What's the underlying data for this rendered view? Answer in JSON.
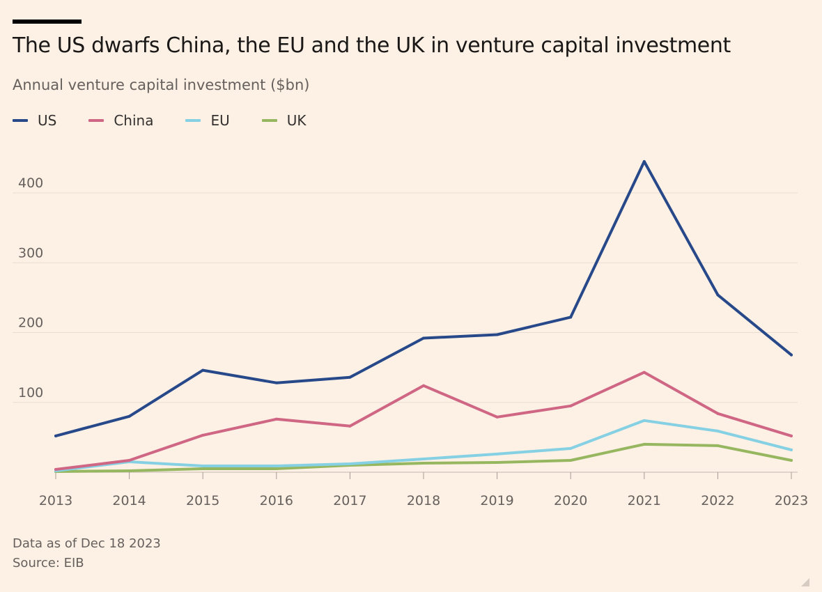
{
  "header": {
    "title": "The US dwarfs China, the EU and the UK in venture capital investment",
    "subtitle": "Annual venture capital investment ($bn)"
  },
  "footer": {
    "note": "Data as of Dec 18 2023",
    "source": "Source: EIB"
  },
  "chart_data": {
    "type": "line",
    "title": "The US dwarfs China, the EU and the UK in venture capital investment",
    "subtitle": "Annual venture capital investment ($bn)",
    "xlabel": "",
    "ylabel": "",
    "x": [
      "2013",
      "2014",
      "2015",
      "2016",
      "2017",
      "2018",
      "2019",
      "2020",
      "2021",
      "2022",
      "2023"
    ],
    "ylim": [
      0,
      440
    ],
    "yticks": [
      100,
      200,
      300,
      400
    ],
    "grid": true,
    "legend_position": "top-left",
    "series": [
      {
        "name": "US",
        "color": "#27498a",
        "values": [
          52,
          80,
          146,
          128,
          136,
          192,
          197,
          222,
          445,
          254,
          168
        ]
      },
      {
        "name": "China",
        "color": "#cf6683",
        "values": [
          4,
          17,
          53,
          76,
          66,
          124,
          79,
          95,
          143,
          84,
          52
        ]
      },
      {
        "name": "EU",
        "color": "#86d0e3",
        "values": [
          2,
          15,
          9,
          9,
          12,
          19,
          26,
          34,
          74,
          59,
          32
        ]
      },
      {
        "name": "UK",
        "color": "#96b760",
        "values": [
          1,
          2,
          5,
          5,
          10,
          13,
          14,
          17,
          40,
          38,
          17
        ]
      }
    ]
  }
}
